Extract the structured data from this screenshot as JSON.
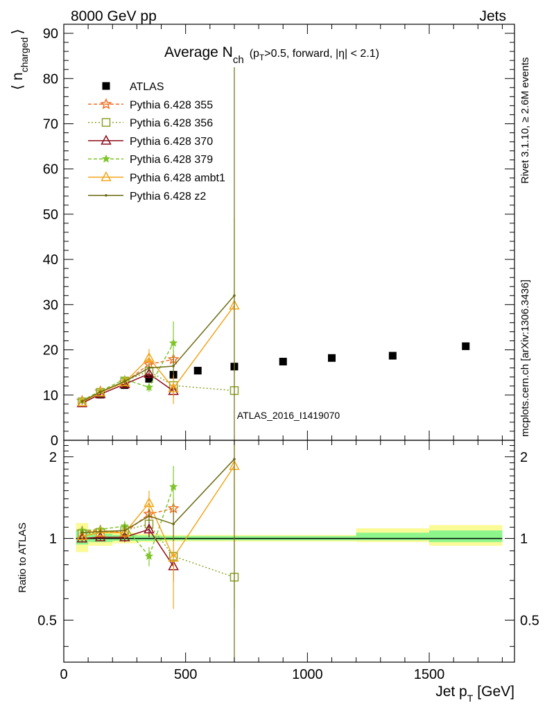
{
  "header": {
    "left": "8000 GeV pp",
    "right": "Jets"
  },
  "side_labels": {
    "rivet": "Rivet 3.1.10, ≥ 2.6M events",
    "mcplots": "mcplots.cern.ch [arXiv:1306.3436]"
  },
  "watermark": "ATLAS_2016_I1419070",
  "colors": {
    "ATLAS": "#000000",
    "Pythia 6.428 355": "#f26d21",
    "Pythia 6.428 356": "#8aa12a",
    "Pythia 6.428 370": "#8b0a1a",
    "Pythia 6.428 379": "#7ec52a",
    "Pythia 6.428 ambt1": "#f2a51a",
    "Pythia 6.428 z2": "#6b6b12",
    "band_inner": "#8cf58c",
    "band_outer": "#fafa96"
  },
  "chart_data": [
    {
      "type": "scatter",
      "title_main": "Average N",
      "title_sub": "ch",
      "title_cond": "(p",
      "title_cond_sub": "T",
      "title_cond_rest": ">0.5, forward, |η| < 2.1)",
      "ylabel": "⟨ n",
      "ylabel_sub": "charged",
      "ylabel_close": "⟩",
      "xlim": [
        0,
        1850
      ],
      "ylim": [
        0,
        92
      ],
      "yticks": [
        0,
        10,
        20,
        30,
        40,
        50,
        60,
        70,
        80,
        90
      ],
      "legend_position": "top-left",
      "series": [
        {
          "name": "ATLAS",
          "marker": "square",
          "points": [
            [
              75,
              8.2
            ],
            [
              150,
              10.1
            ],
            [
              250,
              12.2
            ],
            [
              350,
              13.6
            ],
            [
              450,
              14.5
            ],
            [
              550,
              15.4
            ],
            [
              700,
              16.3
            ],
            [
              900,
              17.4
            ],
            [
              1100,
              18.2
            ],
            [
              1350,
              18.7
            ],
            [
              1650,
              20.8
            ]
          ]
        },
        {
          "name": "Pythia 6.428 355",
          "marker": "star-open",
          "dash": "5,3",
          "points": [
            [
              75,
              8.7
            ],
            [
              150,
              10.8
            ],
            [
              250,
              12.8
            ],
            [
              350,
              16.8
            ],
            [
              450,
              17.9
            ]
          ],
          "err": [
            0.3,
            0.3,
            0.5,
            1.2,
            2.0
          ]
        },
        {
          "name": "Pythia 6.428 356",
          "marker": "square-open",
          "dash": "2,3",
          "points": [
            [
              75,
              8.5
            ],
            [
              150,
              10.6
            ],
            [
              250,
              13.1
            ],
            [
              350,
              15.3
            ],
            [
              450,
              12.1
            ],
            [
              700,
              11.0
            ]
          ],
          "err": [
            0.3,
            0.3,
            0.6,
            1.5,
            2.5,
            0
          ]
        },
        {
          "name": "Pythia 6.428 370",
          "marker": "triangle-open",
          "dash": "",
          "points": [
            [
              75,
              8.2
            ],
            [
              150,
              10.2
            ],
            [
              250,
              12.4
            ],
            [
              350,
              14.7
            ],
            [
              450,
              10.9
            ]
          ],
          "err": [
            0.3,
            0.3,
            0.5,
            1.0,
            1.5
          ]
        },
        {
          "name": "Pythia 6.428 379",
          "marker": "star",
          "dash": "5,3",
          "points": [
            [
              75,
              8.8
            ],
            [
              150,
              10.9
            ],
            [
              250,
              13.5
            ],
            [
              350,
              11.7
            ],
            [
              450,
              21.5
            ]
          ],
          "err": [
            0.3,
            0.3,
            0.6,
            1.0,
            4.8
          ]
        },
        {
          "name": "Pythia 6.428 ambt1",
          "marker": "triangle-open",
          "dash": "",
          "points": [
            [
              75,
              8.4
            ],
            [
              150,
              10.6
            ],
            [
              250,
              12.8
            ],
            [
              350,
              18.2
            ],
            [
              450,
              11.5
            ],
            [
              700,
              29.8
            ]
          ],
          "err": [
            0.3,
            0.3,
            0.6,
            2.0,
            3.5,
            19.5
          ]
        },
        {
          "name": "Pythia 6.428 z2",
          "marker": "dot",
          "dash": "",
          "points": [
            [
              75,
              8.6
            ],
            [
              150,
              10.7
            ],
            [
              250,
              13.0
            ],
            [
              350,
              16.0
            ],
            [
              450,
              16.4
            ],
            [
              700,
              32.0
            ]
          ],
          "err": [
            0.3,
            0.3,
            0.6,
            1.0,
            2.0,
            51
          ]
        }
      ]
    },
    {
      "type": "scatter",
      "ylabel": "Ratio to ATLAS",
      "xlabel": "Jet p",
      "xlabel_sub": "T",
      "xlabel_unit": "[GeV]",
      "xlim": [
        0,
        1850
      ],
      "ylim": [
        0.35,
        2.3
      ],
      "yticks": [
        0.5,
        1,
        2
      ],
      "xticks": [
        0,
        500,
        1000,
        1500
      ],
      "reference": 1,
      "bands": [
        {
          "x": [
            50,
            100
          ],
          "inner": [
            0.95,
            1.07
          ],
          "outer": [
            0.89,
            1.14
          ]
        },
        {
          "x": [
            100,
            200
          ],
          "inner": [
            0.97,
            1.04
          ],
          "outer": [
            0.94,
            1.07
          ]
        },
        {
          "x": [
            200,
            300
          ],
          "inner": [
            0.98,
            1.03
          ],
          "outer": [
            0.96,
            1.05
          ]
        },
        {
          "x": [
            300,
            400
          ],
          "inner": [
            0.98,
            1.025
          ],
          "outer": [
            0.97,
            1.04
          ]
        },
        {
          "x": [
            400,
            1200
          ],
          "inner": [
            0.985,
            1.02
          ],
          "outer": [
            0.975,
            1.03
          ]
        },
        {
          "x": [
            1200,
            1500
          ],
          "inner": [
            0.985,
            1.05
          ],
          "outer": [
            0.97,
            1.09
          ]
        },
        {
          "x": [
            1500,
            1800
          ],
          "inner": [
            0.97,
            1.07
          ],
          "outer": [
            0.94,
            1.12
          ]
        }
      ],
      "series": [
        {
          "name": "Pythia 6.428 355",
          "points": [
            [
              75,
              1.06
            ],
            [
              150,
              1.07
            ],
            [
              250,
              1.05
            ],
            [
              350,
              1.23
            ],
            [
              450,
              1.29
            ]
          ],
          "err": [
            0.03,
            0.03,
            0.04,
            0.08,
            0.12
          ]
        },
        {
          "name": "Pythia 6.428 356",
          "points": [
            [
              75,
              1.04
            ],
            [
              150,
              1.05
            ],
            [
              250,
              1.07
            ],
            [
              350,
              1.13
            ],
            [
              450,
              0.86
            ],
            [
              700,
              0.72
            ]
          ],
          "err": [
            0.03,
            0.03,
            0.05,
            0.1,
            0.15,
            0
          ]
        },
        {
          "name": "Pythia 6.428 370",
          "points": [
            [
              75,
              1.0
            ],
            [
              150,
              1.01
            ],
            [
              250,
              1.01
            ],
            [
              350,
              1.08
            ],
            [
              450,
              0.79
            ]
          ],
          "err": [
            0.03,
            0.03,
            0.04,
            0.07,
            0.1
          ]
        },
        {
          "name": "Pythia 6.428 379",
          "points": [
            [
              75,
              1.07
            ],
            [
              150,
              1.08
            ],
            [
              250,
              1.11
            ],
            [
              350,
              0.86
            ],
            [
              450,
              1.55
            ]
          ],
          "err": [
            0.03,
            0.03,
            0.05,
            0.07,
            0.3
          ]
        },
        {
          "name": "Pythia 6.428 ambt1",
          "points": [
            [
              75,
              1.02
            ],
            [
              150,
              1.05
            ],
            [
              250,
              1.05
            ],
            [
              350,
              1.35
            ],
            [
              450,
              0.85
            ],
            [
              700,
              1.85
            ]
          ],
          "err": [
            0.03,
            0.03,
            0.05,
            0.15,
            0.3,
            1.3
          ]
        },
        {
          "name": "Pythia 6.428 z2",
          "points": [
            [
              75,
              1.05
            ],
            [
              150,
              1.06
            ],
            [
              250,
              1.07
            ],
            [
              350,
              1.21
            ],
            [
              450,
              1.13
            ],
            [
              700,
              1.96
            ]
          ],
          "err": [
            0.03,
            0.03,
            0.05,
            0.07,
            0.15,
            3.0
          ]
        }
      ]
    }
  ]
}
